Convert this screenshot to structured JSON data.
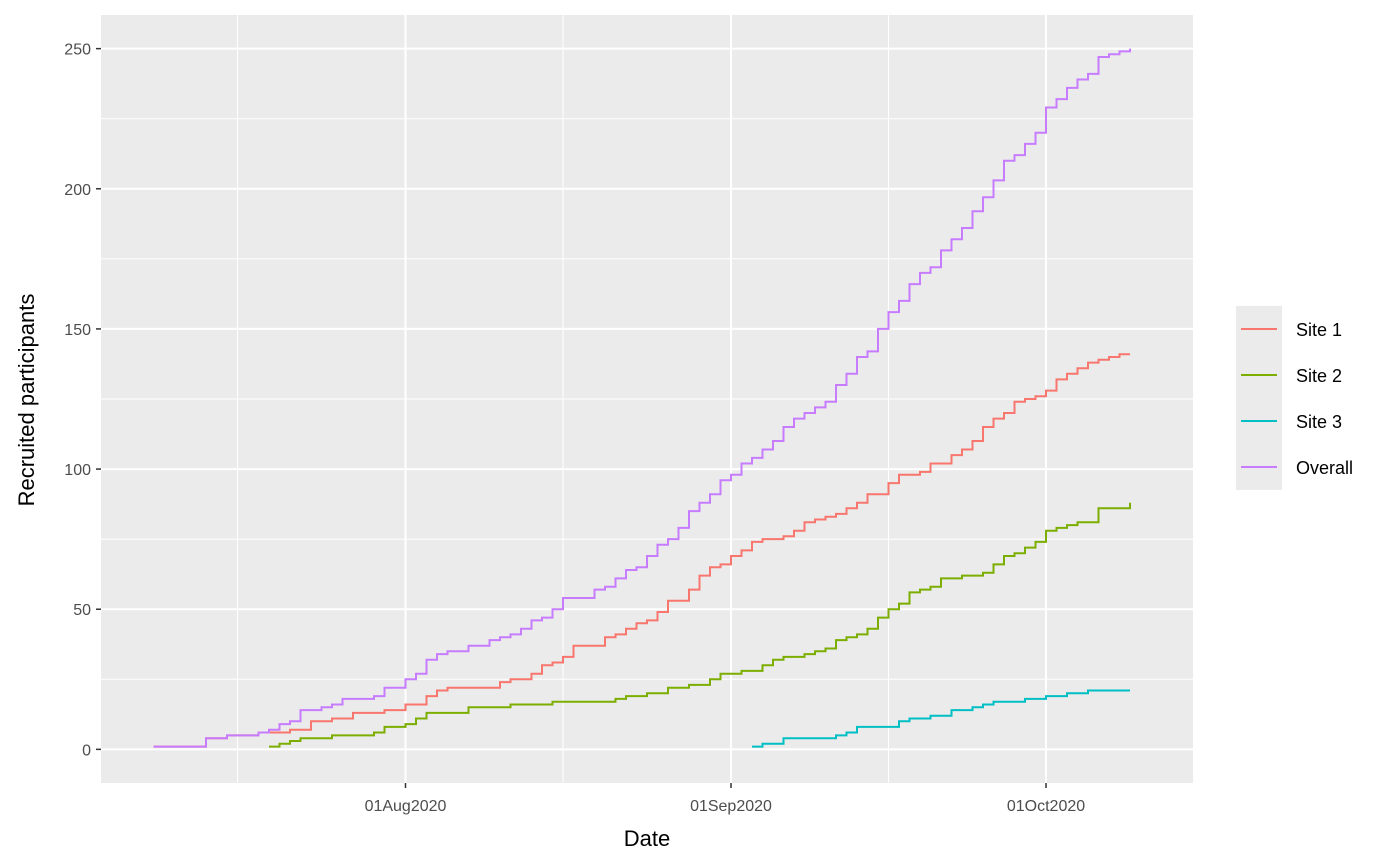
{
  "chart_data": {
    "type": "line",
    "step": true,
    "title": "",
    "xlabel": "Date",
    "ylabel": "Recruited participants",
    "xlim": [
      "2020-07-03",
      "2020-10-15"
    ],
    "ylim": [
      -12,
      262
    ],
    "x_ticks": [
      {
        "date": "2020-08-01",
        "label": "01Aug2020"
      },
      {
        "date": "2020-09-01",
        "label": "01Sep2020"
      },
      {
        "date": "2020-10-01",
        "label": "01Oct2020"
      }
    ],
    "x_minor_ticks": [
      "2020-07-16",
      "2020-08-16",
      "2020-09-16"
    ],
    "y_ticks": [
      0,
      50,
      100,
      150,
      200,
      250
    ],
    "y_minor_ticks": [
      25,
      75,
      125,
      175,
      225
    ],
    "panel_color": "#ebebeb",
    "grid_color": "#ffffff",
    "grid": true,
    "legend_position": "right",
    "series": [
      {
        "name": "Site 1",
        "color": "#F8766D",
        "points": [
          [
            "2020-07-08",
            1
          ],
          [
            "2020-07-13",
            4
          ],
          [
            "2020-07-15",
            5
          ],
          [
            "2020-07-18",
            6
          ],
          [
            "2020-07-21",
            7
          ],
          [
            "2020-07-23",
            10
          ],
          [
            "2020-07-25",
            11
          ],
          [
            "2020-07-27",
            13
          ],
          [
            "2020-07-30",
            14
          ],
          [
            "2020-08-01",
            16
          ],
          [
            "2020-08-03",
            19
          ],
          [
            "2020-08-04",
            21
          ],
          [
            "2020-08-05",
            22
          ],
          [
            "2020-08-10",
            24
          ],
          [
            "2020-08-11",
            25
          ],
          [
            "2020-08-13",
            27
          ],
          [
            "2020-08-14",
            30
          ],
          [
            "2020-08-15",
            31
          ],
          [
            "2020-08-16",
            33
          ],
          [
            "2020-08-17",
            37
          ],
          [
            "2020-08-20",
            40
          ],
          [
            "2020-08-21",
            41
          ],
          [
            "2020-08-22",
            43
          ],
          [
            "2020-08-23",
            45
          ],
          [
            "2020-08-24",
            46
          ],
          [
            "2020-08-25",
            49
          ],
          [
            "2020-08-26",
            53
          ],
          [
            "2020-08-28",
            57
          ],
          [
            "2020-08-29",
            62
          ],
          [
            "2020-08-30",
            65
          ],
          [
            "2020-08-31",
            66
          ],
          [
            "2020-09-01",
            69
          ],
          [
            "2020-09-02",
            71
          ],
          [
            "2020-09-03",
            74
          ],
          [
            "2020-09-04",
            75
          ],
          [
            "2020-09-06",
            76
          ],
          [
            "2020-09-07",
            78
          ],
          [
            "2020-09-08",
            81
          ],
          [
            "2020-09-09",
            82
          ],
          [
            "2020-09-10",
            83
          ],
          [
            "2020-09-11",
            84
          ],
          [
            "2020-09-12",
            86
          ],
          [
            "2020-09-13",
            88
          ],
          [
            "2020-09-14",
            91
          ],
          [
            "2020-09-16",
            95
          ],
          [
            "2020-09-17",
            98
          ],
          [
            "2020-09-19",
            99
          ],
          [
            "2020-09-20",
            102
          ],
          [
            "2020-09-22",
            105
          ],
          [
            "2020-09-23",
            107
          ],
          [
            "2020-09-24",
            110
          ],
          [
            "2020-09-25",
            115
          ],
          [
            "2020-09-26",
            118
          ],
          [
            "2020-09-27",
            120
          ],
          [
            "2020-09-28",
            124
          ],
          [
            "2020-09-29",
            125
          ],
          [
            "2020-09-30",
            126
          ],
          [
            "2020-10-01",
            128
          ],
          [
            "2020-10-02",
            132
          ],
          [
            "2020-10-03",
            134
          ],
          [
            "2020-10-04",
            136
          ],
          [
            "2020-10-05",
            138
          ],
          [
            "2020-10-06",
            139
          ],
          [
            "2020-10-07",
            140
          ],
          [
            "2020-10-08",
            141
          ],
          [
            "2020-10-09",
            141
          ]
        ]
      },
      {
        "name": "Site 2",
        "color": "#7CAE00",
        "points": [
          [
            "2020-07-19",
            1
          ],
          [
            "2020-07-20",
            2
          ],
          [
            "2020-07-21",
            3
          ],
          [
            "2020-07-22",
            4
          ],
          [
            "2020-07-25",
            5
          ],
          [
            "2020-07-29",
            6
          ],
          [
            "2020-07-30",
            8
          ],
          [
            "2020-08-01",
            9
          ],
          [
            "2020-08-02",
            11
          ],
          [
            "2020-08-03",
            13
          ],
          [
            "2020-08-07",
            15
          ],
          [
            "2020-08-11",
            16
          ],
          [
            "2020-08-15",
            17
          ],
          [
            "2020-08-21",
            18
          ],
          [
            "2020-08-22",
            19
          ],
          [
            "2020-08-24",
            20
          ],
          [
            "2020-08-26",
            22
          ],
          [
            "2020-08-28",
            23
          ],
          [
            "2020-08-30",
            25
          ],
          [
            "2020-08-31",
            27
          ],
          [
            "2020-09-02",
            28
          ],
          [
            "2020-09-04",
            30
          ],
          [
            "2020-09-05",
            32
          ],
          [
            "2020-09-06",
            33
          ],
          [
            "2020-09-08",
            34
          ],
          [
            "2020-09-09",
            35
          ],
          [
            "2020-09-10",
            36
          ],
          [
            "2020-09-11",
            39
          ],
          [
            "2020-09-12",
            40
          ],
          [
            "2020-09-13",
            41
          ],
          [
            "2020-09-14",
            43
          ],
          [
            "2020-09-15",
            47
          ],
          [
            "2020-09-16",
            50
          ],
          [
            "2020-09-17",
            52
          ],
          [
            "2020-09-18",
            56
          ],
          [
            "2020-09-19",
            57
          ],
          [
            "2020-09-20",
            58
          ],
          [
            "2020-09-21",
            61
          ],
          [
            "2020-09-23",
            62
          ],
          [
            "2020-09-25",
            63
          ],
          [
            "2020-09-26",
            66
          ],
          [
            "2020-09-27",
            69
          ],
          [
            "2020-09-28",
            70
          ],
          [
            "2020-09-29",
            72
          ],
          [
            "2020-09-30",
            74
          ],
          [
            "2020-10-01",
            78
          ],
          [
            "2020-10-02",
            79
          ],
          [
            "2020-10-03",
            80
          ],
          [
            "2020-10-04",
            81
          ],
          [
            "2020-10-06",
            86
          ],
          [
            "2020-10-09",
            88
          ]
        ]
      },
      {
        "name": "Site 3",
        "color": "#00BFC4",
        "points": [
          [
            "2020-09-03",
            1
          ],
          [
            "2020-09-04",
            2
          ],
          [
            "2020-09-06",
            4
          ],
          [
            "2020-09-11",
            5
          ],
          [
            "2020-09-12",
            6
          ],
          [
            "2020-09-13",
            8
          ],
          [
            "2020-09-17",
            10
          ],
          [
            "2020-09-18",
            11
          ],
          [
            "2020-09-20",
            12
          ],
          [
            "2020-09-22",
            14
          ],
          [
            "2020-09-24",
            15
          ],
          [
            "2020-09-25",
            16
          ],
          [
            "2020-09-26",
            17
          ],
          [
            "2020-09-29",
            18
          ],
          [
            "2020-10-01",
            19
          ],
          [
            "2020-10-03",
            20
          ],
          [
            "2020-10-05",
            21
          ],
          [
            "2020-10-09",
            21
          ]
        ]
      },
      {
        "name": "Overall",
        "color": "#C77CFF",
        "points": [
          [
            "2020-07-08",
            1
          ],
          [
            "2020-07-13",
            4
          ],
          [
            "2020-07-15",
            5
          ],
          [
            "2020-07-18",
            6
          ],
          [
            "2020-07-19",
            7
          ],
          [
            "2020-07-20",
            9
          ],
          [
            "2020-07-21",
            10
          ],
          [
            "2020-07-22",
            14
          ],
          [
            "2020-07-24",
            15
          ],
          [
            "2020-07-25",
            16
          ],
          [
            "2020-07-26",
            18
          ],
          [
            "2020-07-29",
            19
          ],
          [
            "2020-07-30",
            22
          ],
          [
            "2020-08-01",
            25
          ],
          [
            "2020-08-02",
            27
          ],
          [
            "2020-08-03",
            32
          ],
          [
            "2020-08-04",
            34
          ],
          [
            "2020-08-05",
            35
          ],
          [
            "2020-08-07",
            37
          ],
          [
            "2020-08-09",
            39
          ],
          [
            "2020-08-10",
            40
          ],
          [
            "2020-08-11",
            41
          ],
          [
            "2020-08-12",
            43
          ],
          [
            "2020-08-13",
            46
          ],
          [
            "2020-08-14",
            47
          ],
          [
            "2020-08-15",
            50
          ],
          [
            "2020-08-16",
            54
          ],
          [
            "2020-08-19",
            57
          ],
          [
            "2020-08-20",
            58
          ],
          [
            "2020-08-21",
            61
          ],
          [
            "2020-08-22",
            64
          ],
          [
            "2020-08-23",
            65
          ],
          [
            "2020-08-24",
            69
          ],
          [
            "2020-08-25",
            73
          ],
          [
            "2020-08-26",
            75
          ],
          [
            "2020-08-27",
            79
          ],
          [
            "2020-08-28",
            85
          ],
          [
            "2020-08-29",
            88
          ],
          [
            "2020-08-30",
            91
          ],
          [
            "2020-08-31",
            96
          ],
          [
            "2020-09-01",
            98
          ],
          [
            "2020-09-02",
            102
          ],
          [
            "2020-09-03",
            104
          ],
          [
            "2020-09-04",
            107
          ],
          [
            "2020-09-05",
            110
          ],
          [
            "2020-09-06",
            115
          ],
          [
            "2020-09-07",
            118
          ],
          [
            "2020-09-08",
            120
          ],
          [
            "2020-09-09",
            122
          ],
          [
            "2020-09-10",
            124
          ],
          [
            "2020-09-11",
            130
          ],
          [
            "2020-09-12",
            134
          ],
          [
            "2020-09-13",
            140
          ],
          [
            "2020-09-14",
            142
          ],
          [
            "2020-09-15",
            150
          ],
          [
            "2020-09-16",
            156
          ],
          [
            "2020-09-17",
            160
          ],
          [
            "2020-09-18",
            166
          ],
          [
            "2020-09-19",
            170
          ],
          [
            "2020-09-20",
            172
          ],
          [
            "2020-09-21",
            178
          ],
          [
            "2020-09-22",
            182
          ],
          [
            "2020-09-23",
            186
          ],
          [
            "2020-09-24",
            192
          ],
          [
            "2020-09-25",
            197
          ],
          [
            "2020-09-26",
            203
          ],
          [
            "2020-09-27",
            210
          ],
          [
            "2020-09-28",
            212
          ],
          [
            "2020-09-29",
            216
          ],
          [
            "2020-09-30",
            220
          ],
          [
            "2020-10-01",
            229
          ],
          [
            "2020-10-02",
            232
          ],
          [
            "2020-10-03",
            236
          ],
          [
            "2020-10-04",
            239
          ],
          [
            "2020-10-05",
            241
          ],
          [
            "2020-10-06",
            247
          ],
          [
            "2020-10-07",
            248
          ],
          [
            "2020-10-08",
            249
          ],
          [
            "2020-10-09",
            250
          ]
        ]
      }
    ]
  }
}
